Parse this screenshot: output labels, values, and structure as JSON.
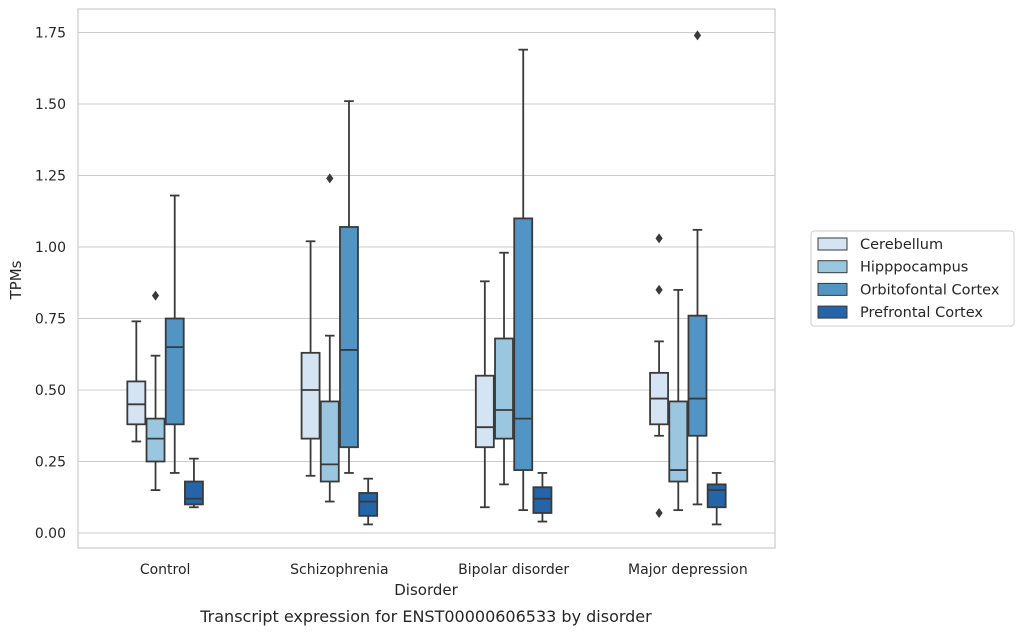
{
  "chart_data": {
    "type": "box",
    "title": "",
    "caption": "Transcript expression for ENST00000606533 by disorder",
    "xlabel": "Disorder",
    "ylabel": "TPMs",
    "ylim": [
      -0.05,
      1.83
    ],
    "yticks": [
      0.0,
      0.25,
      0.5,
      0.75,
      1.0,
      1.25,
      1.5,
      1.75
    ],
    "ytick_labels": [
      "0.00",
      "0.25",
      "0.50",
      "0.75",
      "1.00",
      "1.25",
      "1.50",
      "1.75"
    ],
    "grid": true,
    "legend_position": "right",
    "categories": [
      "Control",
      "Schizophrenia",
      "Bipolar disorder",
      "Major depression"
    ],
    "series": [
      {
        "name": "Cerebellum",
        "color": "#d4e4f3",
        "boxes": [
          {
            "q1": 0.38,
            "median": 0.45,
            "q3": 0.53,
            "whislo": 0.32,
            "whishi": 0.74,
            "fliers": []
          },
          {
            "q1": 0.33,
            "median": 0.5,
            "q3": 0.63,
            "whislo": 0.2,
            "whishi": 1.02,
            "fliers": []
          },
          {
            "q1": 0.3,
            "median": 0.37,
            "q3": 0.55,
            "whislo": 0.09,
            "whishi": 0.88,
            "fliers": []
          },
          {
            "q1": 0.38,
            "median": 0.47,
            "q3": 0.56,
            "whislo": 0.34,
            "whishi": 0.67,
            "fliers": [
              0.07,
              0.85,
              1.03
            ]
          }
        ]
      },
      {
        "name": "Hipppocampus",
        "color": "#9ac7df",
        "boxes": [
          {
            "q1": 0.25,
            "median": 0.33,
            "q3": 0.4,
            "whislo": 0.15,
            "whishi": 0.62,
            "fliers": [
              0.83
            ]
          },
          {
            "q1": 0.18,
            "median": 0.24,
            "q3": 0.46,
            "whislo": 0.11,
            "whishi": 0.69,
            "fliers": [
              1.24
            ]
          },
          {
            "q1": 0.33,
            "median": 0.43,
            "q3": 0.68,
            "whislo": 0.17,
            "whishi": 0.98,
            "fliers": []
          },
          {
            "q1": 0.18,
            "median": 0.22,
            "q3": 0.46,
            "whislo": 0.08,
            "whishi": 0.85,
            "fliers": []
          }
        ]
      },
      {
        "name": "Orbitofontal Cortex",
        "color": "#5294c3",
        "boxes": [
          {
            "q1": 0.38,
            "median": 0.65,
            "q3": 0.75,
            "whislo": 0.21,
            "whishi": 1.18,
            "fliers": []
          },
          {
            "q1": 0.3,
            "median": 0.64,
            "q3": 1.07,
            "whislo": 0.21,
            "whishi": 1.51,
            "fliers": []
          },
          {
            "q1": 0.22,
            "median": 0.4,
            "q3": 1.1,
            "whislo": 0.08,
            "whishi": 1.69,
            "fliers": []
          },
          {
            "q1": 0.34,
            "median": 0.47,
            "q3": 0.76,
            "whislo": 0.1,
            "whishi": 1.06,
            "fliers": [
              1.74
            ]
          }
        ]
      },
      {
        "name": "Prefrontal Cortex",
        "color": "#2464a8",
        "boxes": [
          {
            "q1": 0.1,
            "median": 0.12,
            "q3": 0.18,
            "whislo": 0.09,
            "whishi": 0.26,
            "fliers": []
          },
          {
            "q1": 0.06,
            "median": 0.11,
            "q3": 0.14,
            "whislo": 0.03,
            "whishi": 0.19,
            "fliers": []
          },
          {
            "q1": 0.07,
            "median": 0.12,
            "q3": 0.16,
            "whislo": 0.04,
            "whishi": 0.21,
            "fliers": []
          },
          {
            "q1": 0.09,
            "median": 0.15,
            "q3": 0.17,
            "whislo": 0.03,
            "whishi": 0.21,
            "fliers": []
          }
        ]
      }
    ]
  }
}
